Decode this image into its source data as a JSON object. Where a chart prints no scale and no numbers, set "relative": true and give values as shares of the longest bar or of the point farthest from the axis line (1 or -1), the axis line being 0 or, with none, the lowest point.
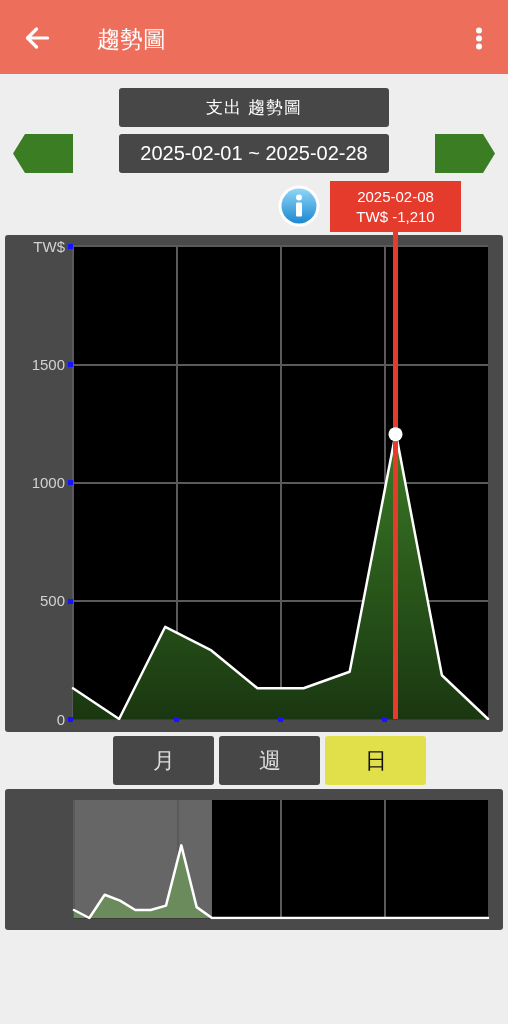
{
  "chart_data": [
    {
      "type": "area",
      "title": "支出 趨勢圖",
      "subtitle": "2025-02-01 ~ 2025-02-28",
      "annotations": [
        "趨勢圖",
        "2025-02-08\nTW$ -1,210",
        "月",
        "週",
        "日"
      ],
      "categories": [
        null,
        null,
        null,
        null,
        null,
        null,
        null,
        null,
        null,
        null
      ],
      "values": [
        130,
        0,
        390,
        290,
        130,
        130,
        200,
        1210,
        185,
        0
      ],
      "color": "#3a7a25",
      "ylim": [
        0,
        2000
      ],
      "yticks": [
        0,
        500,
        1000,
        1500,
        {
          "value": 2000,
          "label": "TW$"
        }
      ],
      "grid": true,
      "tick_labels": "y",
      "marker": "none",
      "line_style": "solid"
    },
    {
      "type": "area",
      "relative": true,
      "categories": [
        null,
        null,
        null,
        null,
        null,
        null,
        null,
        null,
        null,
        null,
        null,
        null,
        null,
        null,
        null,
        null,
        null,
        null,
        null,
        null,
        null,
        null,
        null,
        null,
        null,
        null,
        null,
        null
      ],
      "values": [
        0.11,
        0,
        0.32,
        0.24,
        0.11,
        0.11,
        0.17,
        1,
        0.15,
        0,
        0,
        0,
        0,
        0,
        0,
        0,
        0,
        0,
        0,
        0,
        0,
        0,
        0,
        0,
        0,
        0,
        0,
        0
      ],
      "color": "#6b8b5c",
      "grid": "x",
      "tick_labels": false,
      "marker": "none",
      "line_style": "solid"
    }
  ]
}
